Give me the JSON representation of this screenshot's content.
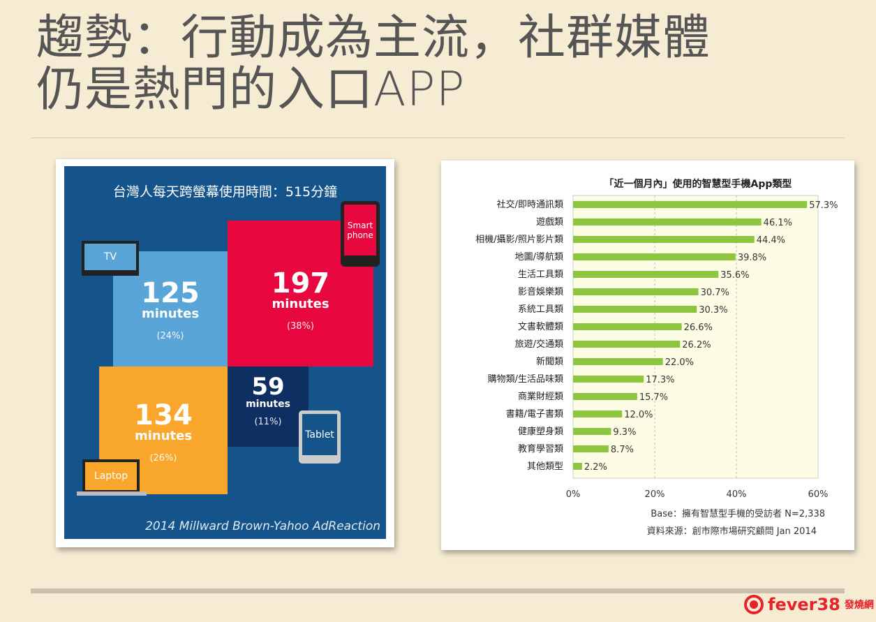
{
  "slide": {
    "title_line1": "趨勢：行動成為主流，社群媒體",
    "title_line2": "仍是熱門的入口APP"
  },
  "infographic": {
    "heading": "台灣人每天跨螢幕使用時間：515分鐘",
    "tv": {
      "device": "TV",
      "value": "125",
      "unit": "minutes",
      "share": "(24%)"
    },
    "smartphone": {
      "device": "Smart phone",
      "value": "197",
      "unit": "minutes",
      "share": "(38%)"
    },
    "laptop": {
      "device": "Laptop",
      "value": "134",
      "unit": "minutes",
      "share": "(26%)"
    },
    "tablet": {
      "device": "Tablet",
      "value": "59",
      "unit": "minutes",
      "share": "(11%)"
    },
    "source": "2014 Millward Brown-Yahoo AdReaction",
    "colors": {
      "bg": "#14548b",
      "tv": "#5aa5d8",
      "smartphone": "#e8083f",
      "laptop": "#f9a62c",
      "tablet": "#0e2f62"
    }
  },
  "chart_data": {
    "type": "bar",
    "orientation": "horizontal",
    "title": "「近一個月內」使用的智慧型手機App類型",
    "categories": [
      "社交/即時通訊類",
      "遊戲類",
      "相機/攝影/照片影片類",
      "地圖/導航類",
      "生活工具類",
      "影音娛樂類",
      "系統工具類",
      "文書軟體類",
      "旅遊/交通類",
      "新聞類",
      "購物類/生活品味類",
      "商業財經類",
      "書籍/電子書類",
      "健康塑身類",
      "教育學習類",
      "其他類型"
    ],
    "values": [
      57.3,
      46.1,
      44.4,
      39.8,
      35.6,
      30.7,
      30.3,
      26.6,
      26.2,
      22.0,
      17.3,
      15.7,
      12.0,
      9.3,
      8.7,
      2.2
    ],
    "labels": [
      "57.3%",
      "46.1%",
      "44.4%",
      "39.8%",
      "35.6%",
      "30.7%",
      "30.3%",
      "26.6%",
      "26.2%",
      "22.0%",
      "17.3%",
      "15.7%",
      "12.0%",
      "9.3%",
      "8.7%",
      "2.2%"
    ],
    "xlim": [
      0,
      60
    ],
    "xticks": [
      "0%",
      "20%",
      "40%",
      "60%"
    ],
    "grid": "vertical dashed",
    "bar_color": "#8cc63f",
    "plot_bg": "#fdfde6",
    "base_note": "Base：擁有智慧型手機的受訪者 N=2,338",
    "source_note": "資料來源：創市際市場研究顧問 Jan 2014"
  },
  "footer": {
    "logo_text": "fever38",
    "logo_cjk": "發燒網",
    "logo_color": "#e8222a"
  }
}
